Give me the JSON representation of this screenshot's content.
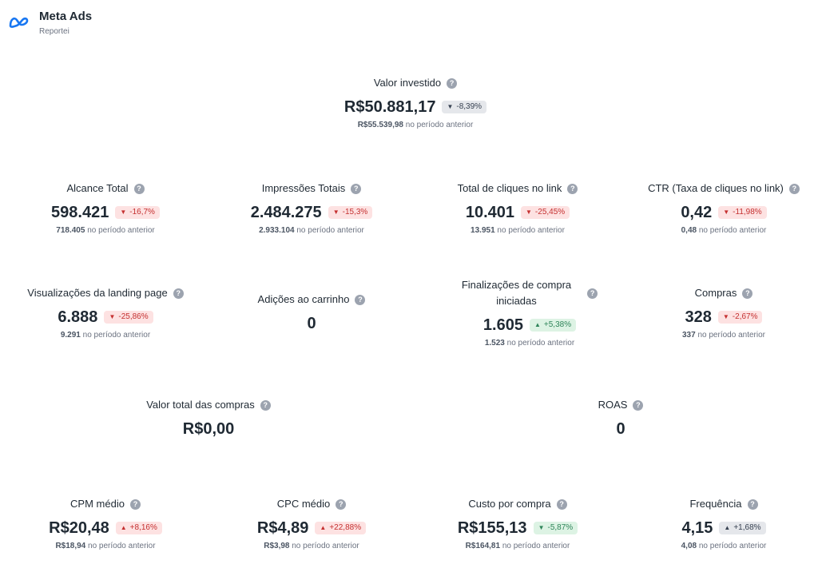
{
  "header": {
    "title": "Meta Ads",
    "subtitle": "Reportei"
  },
  "help_glyph": "?",
  "prev_suffix": "no período anterior",
  "metrics": {
    "valor_investido": {
      "label": "Valor investido",
      "value": "R$50.881,17",
      "change": "-8,39%",
      "prev": "R$55.539,98"
    },
    "alcance": {
      "label": "Alcance Total",
      "value": "598.421",
      "change": "-16,7%",
      "prev": "718.405"
    },
    "impressoes": {
      "label": "Impressões Totais",
      "value": "2.484.275",
      "change": "-15,3%",
      "prev": "2.933.104"
    },
    "cliques": {
      "label": "Total de cliques no link",
      "value": "10.401",
      "change": "-25,45%",
      "prev": "13.951"
    },
    "ctr": {
      "label": "CTR (Taxa de cliques no link)",
      "value": "0,42",
      "change": "-11,98%",
      "prev": "0,48"
    },
    "visualizacoes": {
      "label": "Visualizações da landing page",
      "value": "6.888",
      "change": "-25,86%",
      "prev": "9.291"
    },
    "adicoes": {
      "label": "Adições ao carrinho",
      "value": "0"
    },
    "finalizacoes": {
      "label_line1": "Finalizações de compra",
      "label_line2": "iniciadas",
      "value": "1.605",
      "change": "+5,38%",
      "prev": "1.523"
    },
    "compras": {
      "label": "Compras",
      "value": "328",
      "change": "-2,67%",
      "prev": "337"
    },
    "valor_total": {
      "label": "Valor total das compras",
      "value": "R$0,00"
    },
    "roas": {
      "label": "ROAS",
      "value": "0"
    },
    "cpm": {
      "label": "CPM médio",
      "value": "R$20,48",
      "change": "+8,16%",
      "prev": "R$18,94"
    },
    "cpc": {
      "label": "CPC médio",
      "value": "R$4,89",
      "change": "+22,88%",
      "prev": "R$3,98"
    },
    "custo_compra": {
      "label": "Custo por compra",
      "value": "R$155,13",
      "change": "-5,87%",
      "prev": "R$164,81"
    },
    "frequencia": {
      "label": "Frequência",
      "value": "4,15",
      "change": "+1,68%",
      "prev": "4,08"
    }
  },
  "colors": {
    "negative_bg": "#fde2e2",
    "negative_fg": "#c53030",
    "positive_bg": "#ddf3e4",
    "positive_fg": "#2f855a",
    "neutral_bg": "#e5e7eb",
    "logo": "#1877f2"
  }
}
